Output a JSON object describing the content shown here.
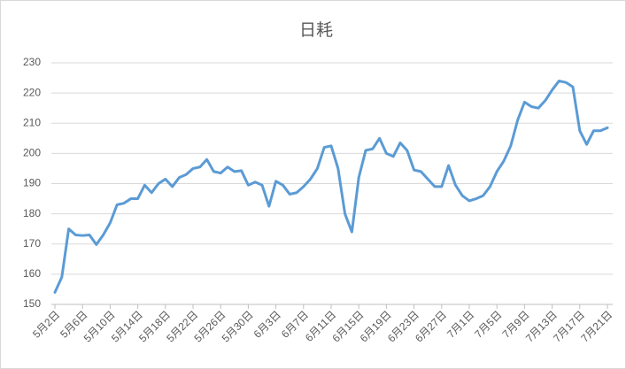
{
  "chart_data": {
    "type": "line",
    "title": "日耗",
    "categories": [
      "5月2日",
      null,
      null,
      null,
      "5月6日",
      null,
      null,
      null,
      "5月10日",
      null,
      null,
      null,
      "5月14日",
      null,
      null,
      null,
      "5月18日",
      null,
      null,
      null,
      "5月22日",
      null,
      null,
      null,
      "5月26日",
      null,
      null,
      null,
      "5月30日",
      null,
      null,
      null,
      "6月3日",
      null,
      null,
      null,
      "6月7日",
      null,
      null,
      null,
      "6月11日",
      null,
      null,
      null,
      "6月15日",
      null,
      null,
      null,
      "6月19日",
      null,
      null,
      null,
      "6月23日",
      null,
      null,
      null,
      "6月27日",
      null,
      null,
      null,
      "7月1日",
      null,
      null,
      null,
      "7月5日",
      null,
      null,
      null,
      "7月9日",
      null,
      null,
      null,
      "7月13日",
      null,
      null,
      null,
      "7月17日",
      null,
      null,
      null,
      "7月21日"
    ],
    "values": [
      154,
      159,
      175,
      173,
      172.8,
      173,
      169.8,
      173,
      177,
      183,
      183.5,
      185,
      185,
      189.5,
      187,
      190,
      191.5,
      189,
      192,
      193,
      195,
      195.5,
      198,
      194,
      193.5,
      195.5,
      194,
      194.3,
      189.5,
      190.5,
      189.5,
      182.5,
      190.8,
      189.5,
      186.5,
      187,
      189,
      191.5,
      195,
      202,
      202.5,
      195,
      180,
      174,
      192,
      201,
      201.5,
      205,
      200,
      199,
      203.5,
      201,
      194.5,
      194,
      191.5,
      189,
      189,
      196,
      189.5,
      186,
      184.3,
      185,
      186,
      189,
      194,
      197.5,
      202.5,
      211,
      217,
      215.5,
      215,
      217.5,
      221,
      224,
      223.5,
      222,
      207.5,
      203,
      207.5,
      207.5,
      208.5
    ],
    "color": "#5b9bd5",
    "ylim": [
      150,
      230
    ],
    "yticks": [
      150,
      160,
      170,
      180,
      190,
      200,
      210,
      220,
      230
    ],
    "grid": true
  }
}
